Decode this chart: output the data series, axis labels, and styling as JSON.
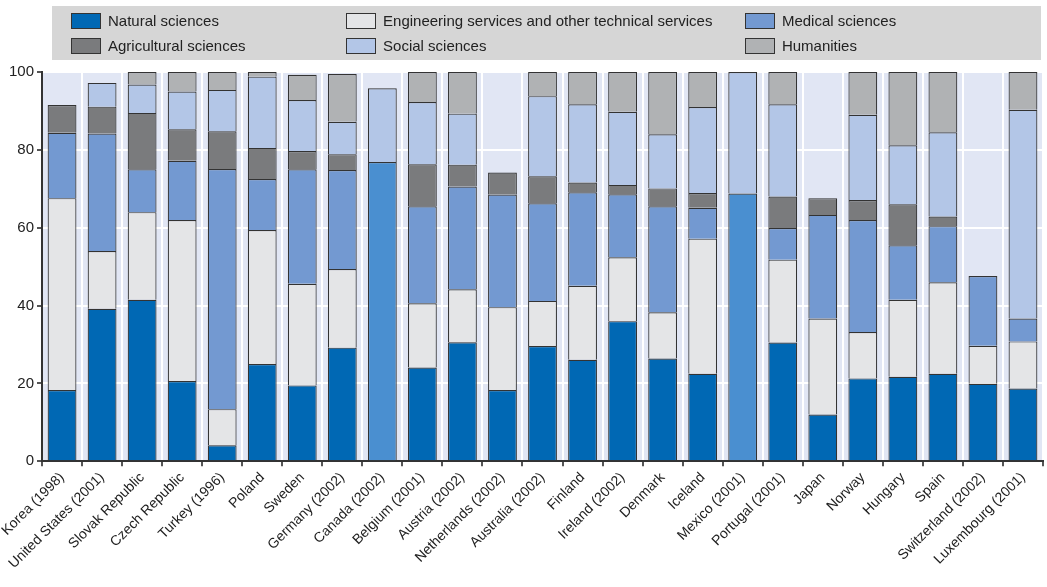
{
  "chart_data": {
    "type": "bar",
    "stacked": true,
    "categories": [
      "Korea (1998)",
      "United States (2001)",
      "Slovak Republic",
      "Czech Republic",
      "Turkey (1996)",
      "Poland",
      "Sweden",
      "Germany (2002)",
      "Canada (2002)",
      "Belgium (2001)",
      "Austria (2002)",
      "Netherlands (2002)",
      "Australia (2002)",
      "Finland",
      "Ireland (2002)",
      "Denmark",
      "Iceland",
      "Mexico (2001)",
      "Portugal (2001)",
      "Japan",
      "Norway",
      "Hungary",
      "Spain",
      "Switzerland (2002)",
      "Luxembourg (2001)"
    ],
    "series": [
      {
        "color": "#4a8fd0",
        "values": [
          null,
          null,
          null,
          null,
          null,
          null,
          null,
          null,
          76.9,
          null,
          null,
          null,
          null,
          null,
          null,
          null,
          null,
          68.8,
          null,
          null,
          null,
          null,
          null,
          null,
          null
        ]
      },
      {
        "name": "Natural sciences",
        "color": "#0068b4",
        "values": [
          18.3,
          39.2,
          41.5,
          20.6,
          4.1,
          25,
          19.5,
          29.2,
          null,
          24.1,
          30.6,
          18.3,
          29.6,
          26.1,
          36,
          26.4,
          22.5,
          null,
          30.5,
          12,
          21.3,
          21.7,
          22.5,
          19.9,
          18.7
        ]
      },
      {
        "name": "Engineering services and other technical services",
        "color": "#e4e5e7",
        "values": [
          49.3,
          14.8,
          22.5,
          41.4,
          9.3,
          34.4,
          26.1,
          20.2,
          null,
          16.5,
          13.6,
          21.3,
          11.6,
          19,
          16.4,
          11.9,
          34.7,
          null,
          21.3,
          24.7,
          11.9,
          19.8,
          23.5,
          9.8,
          12.1
        ]
      },
      {
        "name": "Medical sciences",
        "color": "#7399d1",
        "values": [
          16.8,
          30.2,
          11,
          15.2,
          61.7,
          13.1,
          29.4,
          25.4,
          null,
          24.9,
          26.4,
          28.9,
          25.1,
          24,
          16.2,
          27.2,
          7.9,
          null,
          8.1,
          26.6,
          28.8,
          14,
          14.4,
          17.9,
          5.9
        ]
      },
      {
        "name": "Agricultural sciences",
        "color": "#7a7b7d",
        "values": [
          7.1,
          6.9,
          14.5,
          8.1,
          9.7,
          8,
          4.7,
          4.1,
          null,
          10.8,
          5.6,
          5.7,
          6.9,
          2.5,
          2.4,
          4.6,
          3.8,
          null,
          8.1,
          4.3,
          5.1,
          10.5,
          2.5,
          null,
          null
        ]
      },
      {
        "name": "Social sciences",
        "color": "#b3c6e7",
        "values": [
          null,
          6.1,
          7.3,
          9.7,
          10.6,
          18.3,
          13.1,
          8.3,
          18.9,
          16,
          13.1,
          null,
          20.6,
          20.1,
          18.8,
          13.9,
          22.1,
          31.2,
          23.7,
          null,
          21.9,
          15.2,
          21.6,
          null,
          53.6
        ]
      },
      {
        "name": "Humanities",
        "color": "#b0b2b4",
        "values": [
          null,
          null,
          3.2,
          5,
          4.6,
          1.2,
          6.5,
          12.3,
          null,
          7.7,
          10.7,
          null,
          6.2,
          8.3,
          10.2,
          16,
          9,
          null,
          8.3,
          null,
          11,
          18.8,
          15.5,
          null,
          9.7
        ]
      }
    ],
    "ylim": [
      0,
      100
    ],
    "yticks": [
      0,
      20,
      40,
      60,
      80,
      100
    ],
    "grid": true,
    "legend": "top"
  }
}
